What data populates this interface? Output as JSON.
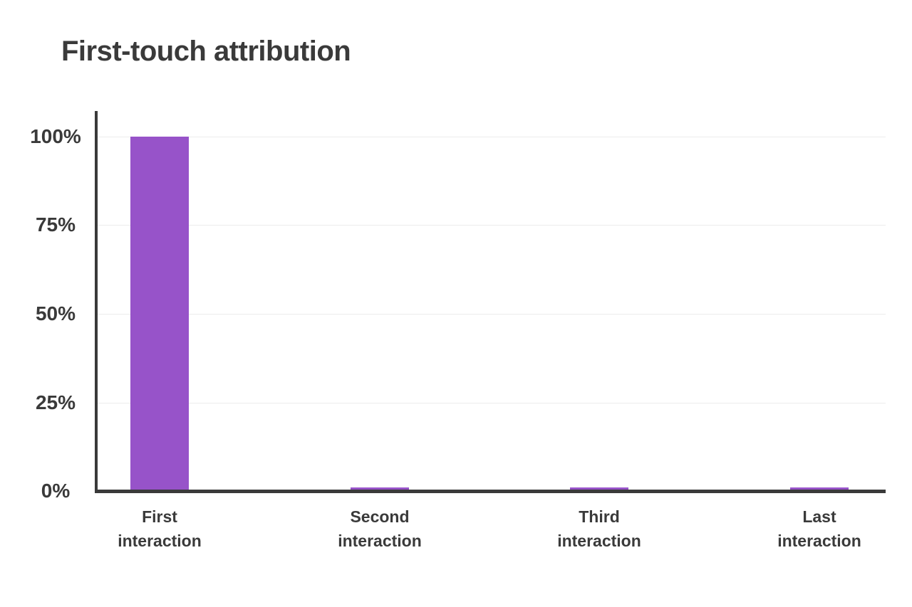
{
  "chart_data": {
    "type": "bar",
    "title": "First-touch attribution",
    "categories": [
      "First interaction",
      "Second interaction",
      "Third interaction",
      "Last interaction"
    ],
    "values": [
      100,
      0.5,
      0.5,
      0.5
    ],
    "value_unit": "%",
    "y_ticks": [
      {
        "value": 100,
        "label": "100%"
      },
      {
        "value": 75,
        "label": "75%"
      },
      {
        "value": 50,
        "label": "50%"
      },
      {
        "value": 25,
        "label": "25%"
      },
      {
        "value": 0,
        "label": "0%"
      }
    ],
    "ylim": [
      0,
      107
    ],
    "xlabel": "",
    "ylabel": "",
    "grid": "horizontal",
    "legend": "none",
    "colors": {
      "bar": "#9753c9",
      "axis": "#3a3a3a",
      "text": "#3a3a3a",
      "gridline": "#ececec",
      "background": "#ffffff"
    }
  }
}
